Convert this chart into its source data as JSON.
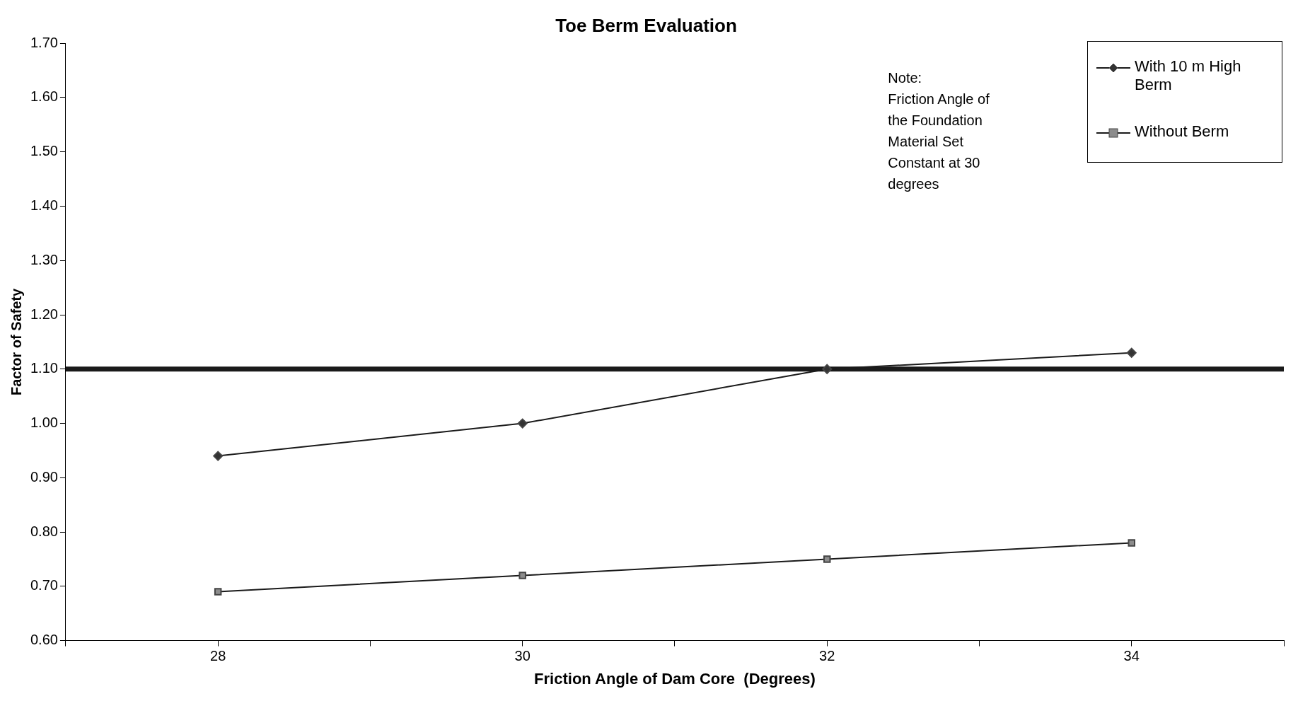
{
  "chart_data": {
    "type": "line",
    "title": "Toe Berm Evaluation",
    "xlabel": "Friction Angle of Dam Core  (Degrees)",
    "ylabel": "Factor of Safety",
    "x": [
      28,
      30,
      32,
      34
    ],
    "series": [
      {
        "name": "With 10 m High Berm",
        "color": "#333333",
        "marker": "diamond",
        "values": [
          0.94,
          1.0,
          1.1,
          1.13
        ]
      },
      {
        "name": "Without Berm",
        "color": "#8c8c8c",
        "marker": "square",
        "values": [
          0.69,
          0.72,
          0.75,
          0.78
        ]
      }
    ],
    "xlim": [
      27,
      35
    ],
    "xticks": [
      {
        "value": 27,
        "label": null
      },
      28,
      {
        "value": 29,
        "label": null
      },
      30,
      {
        "value": 31,
        "label": null
      },
      32,
      {
        "value": 33,
        "label": null
      },
      34,
      {
        "value": 35,
        "label": null
      }
    ],
    "ylim": [
      0.6,
      1.7
    ],
    "yticks": [
      {
        "value": 0.6,
        "label": "0.60"
      },
      {
        "value": 0.7,
        "label": "0.70"
      },
      {
        "value": 0.8,
        "label": "0.80"
      },
      {
        "value": 0.9,
        "label": "0.90"
      },
      {
        "value": 1.0,
        "label": "1.00"
      },
      {
        "value": 1.1,
        "label": "1.10"
      },
      {
        "value": 1.2,
        "label": "1.20"
      },
      {
        "value": 1.3,
        "label": "1.30"
      },
      {
        "value": 1.4,
        "label": "1.40"
      },
      {
        "value": 1.5,
        "label": "1.50"
      },
      {
        "value": 1.6,
        "label": "1.60"
      },
      {
        "value": 1.7,
        "label": "1.70"
      }
    ],
    "ref_lines": [
      {
        "axis": "y",
        "value": 1.1,
        "color": "#1a1a1a"
      }
    ],
    "annotations": [
      "Note:",
      "Friction Angle of the Foundation Material Set Constant at 30 degrees"
    ],
    "legend": "top right",
    "grid": false,
    "line_style": "solid"
  }
}
